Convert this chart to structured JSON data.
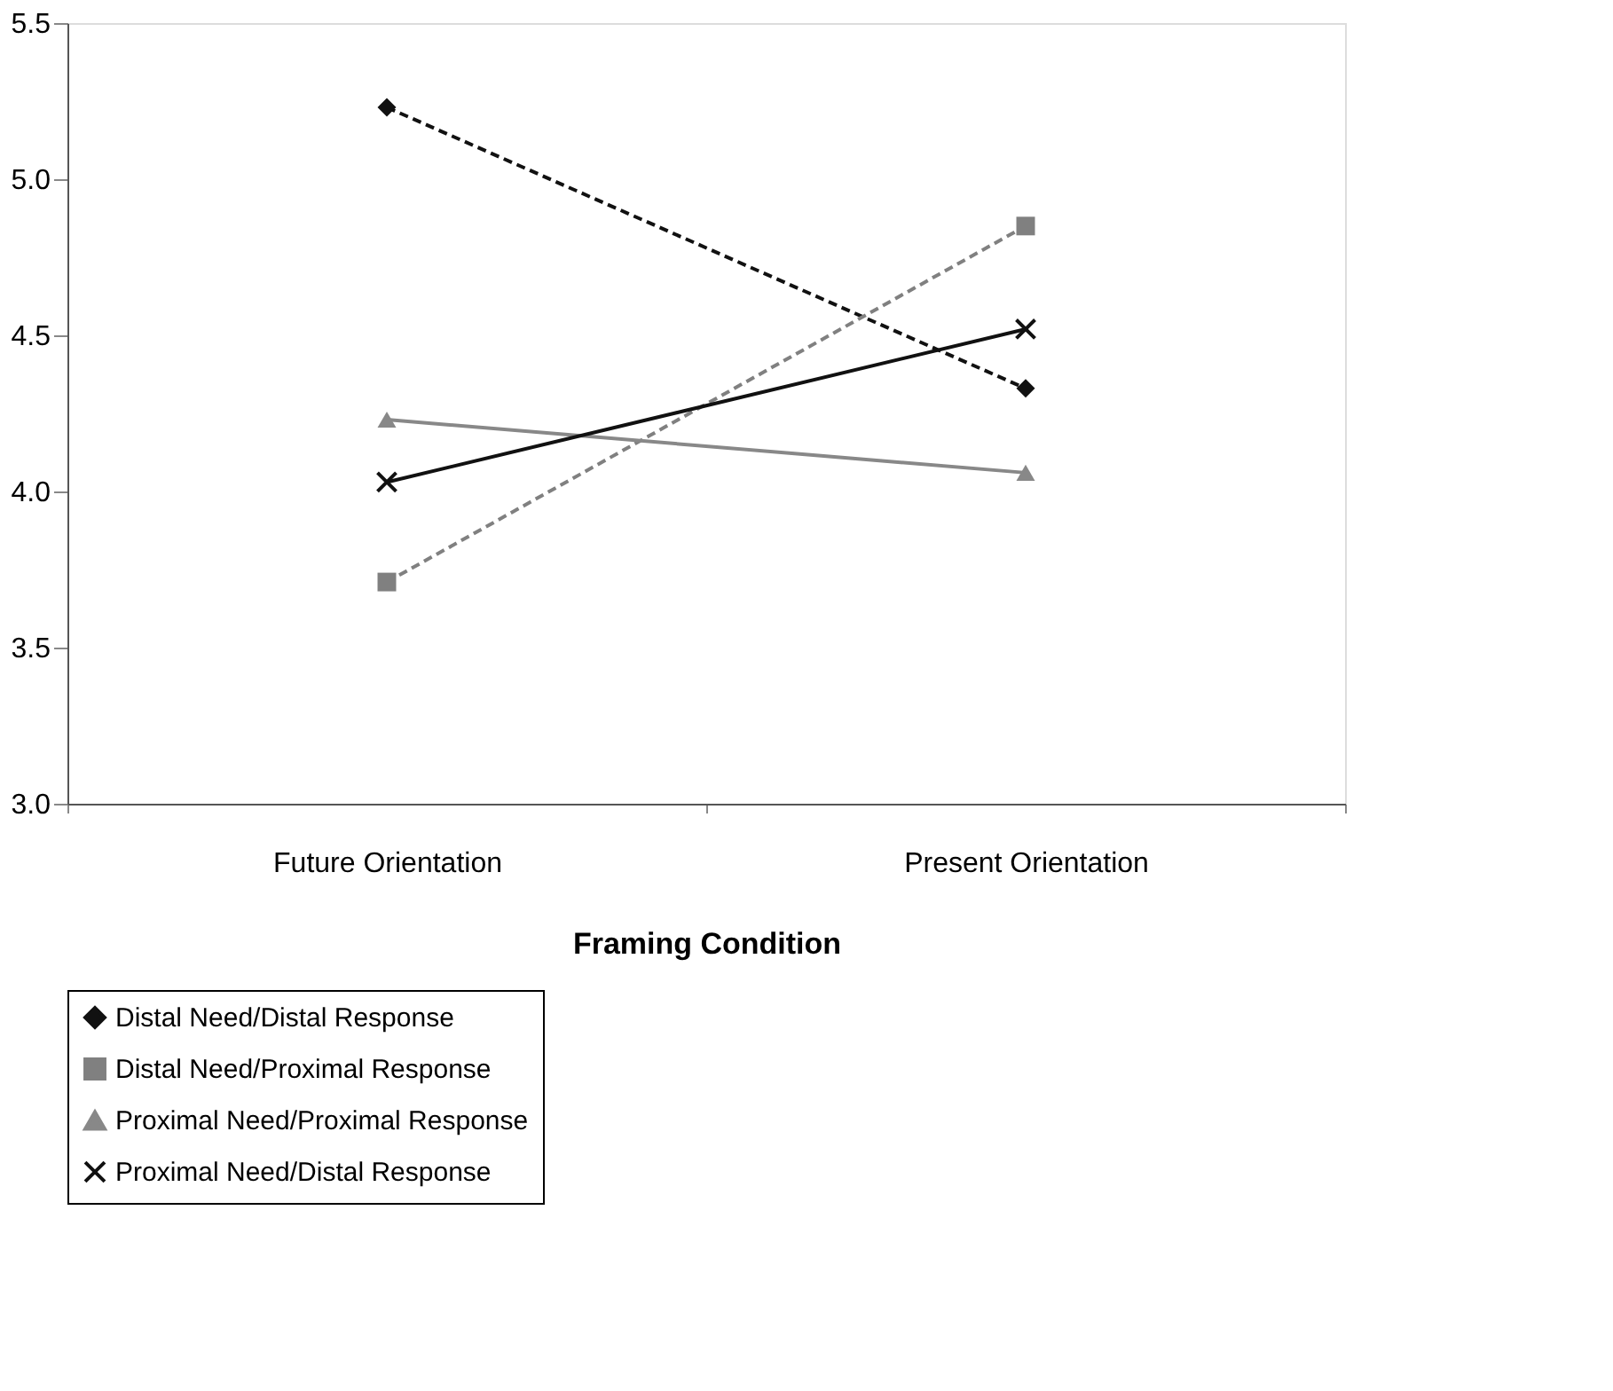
{
  "chart_data": {
    "type": "line",
    "xlabel": "Framing Condition",
    "categories": [
      "Future Orientation",
      "Present Orientation"
    ],
    "series": [
      {
        "name": "Distal Need/Distal Response",
        "color": "#111111",
        "line_style": "dashed",
        "marker": "diamond",
        "values": [
          5.23,
          4.33
        ]
      },
      {
        "name": "Distal Need/Proximal Response",
        "color": "#808080",
        "line_style": "dashed",
        "marker": "square",
        "values": [
          3.71,
          4.85
        ]
      },
      {
        "name": "Proximal Need/Proximal Response",
        "color": "#888888",
        "line_style": "solid",
        "marker": "triangle",
        "values": [
          4.23,
          4.06
        ]
      },
      {
        "name": "Proximal Need/Distal Response",
        "color": "#111111",
        "line_style": "solid",
        "marker": "cross",
        "values": [
          4.03,
          4.52
        ]
      }
    ],
    "ylim": [
      3.0,
      5.5
    ],
    "yticks": [
      {
        "value": 3.0,
        "label": "3.0"
      },
      {
        "value": 3.5,
        "label": "3.5"
      },
      {
        "value": 4.0,
        "label": "4.0"
      },
      {
        "value": 4.5,
        "label": "4.5"
      },
      {
        "value": 5.0,
        "label": "5.0"
      },
      {
        "value": 5.5,
        "label": "5.5"
      }
    ],
    "grid": false,
    "legend": "bottom"
  }
}
